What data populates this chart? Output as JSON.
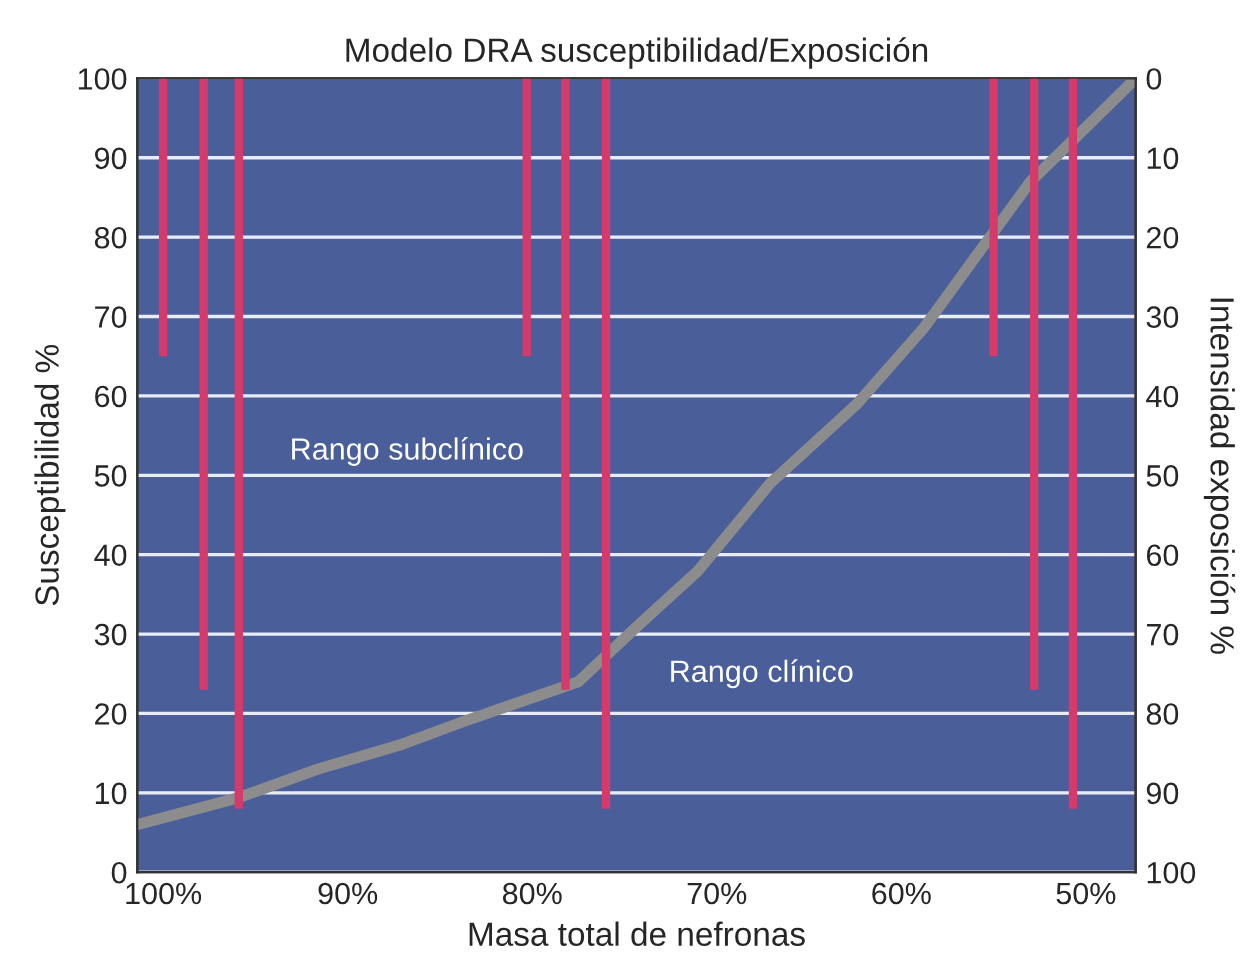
{
  "chart_data": {
    "type": "line",
    "title": "Modelo DRA susceptibilidad/Exposición",
    "xlabel": "Masa total de nefronas",
    "ylabel": "Susceptibilidad %",
    "y2label": "Intensidad exposición %",
    "xlim": [
      101.4,
      47.3
    ],
    "xticks": [
      {
        "value": 100,
        "label": "100%"
      },
      {
        "value": 90,
        "label": "90%"
      },
      {
        "value": 80,
        "label": "80%"
      },
      {
        "value": 70,
        "label": "70%"
      },
      {
        "value": 60,
        "label": "60%"
      },
      {
        "value": 50,
        "label": "50%"
      }
    ],
    "ylim": [
      0,
      100
    ],
    "yticks": [
      0,
      10,
      20,
      30,
      40,
      50,
      60,
      70,
      80,
      90,
      100
    ],
    "y2lim": [
      100,
      0
    ],
    "y2ticks": [
      0,
      10,
      20,
      30,
      40,
      50,
      60,
      70,
      80,
      90,
      100
    ],
    "grid": "y",
    "legend": false,
    "series": [
      {
        "type": "bar",
        "axis": "y2",
        "color": "#d63a6a",
        "x": [
          100,
          97.8,
          95.9,
          80.3,
          78.2,
          76.0,
          55.0,
          52.8,
          50.7
        ],
        "values": [
          35,
          77,
          92,
          35,
          77,
          92,
          35,
          77,
          92
        ]
      },
      {
        "color": "#8c8c8c",
        "x": [
          101.4,
          95.9,
          91.6,
          87.2,
          83.7,
          77.5,
          74.3,
          71.0,
          67.1,
          62.4,
          58.8,
          55.2,
          53.0,
          50.8,
          47.3
        ],
        "values": [
          6,
          9.4,
          13,
          16,
          19,
          24,
          31,
          38,
          49,
          59,
          68.5,
          80,
          87,
          92,
          100
        ]
      }
    ],
    "annotations": [
      "Rango subclínico",
      "Rango clínico"
    ]
  }
}
